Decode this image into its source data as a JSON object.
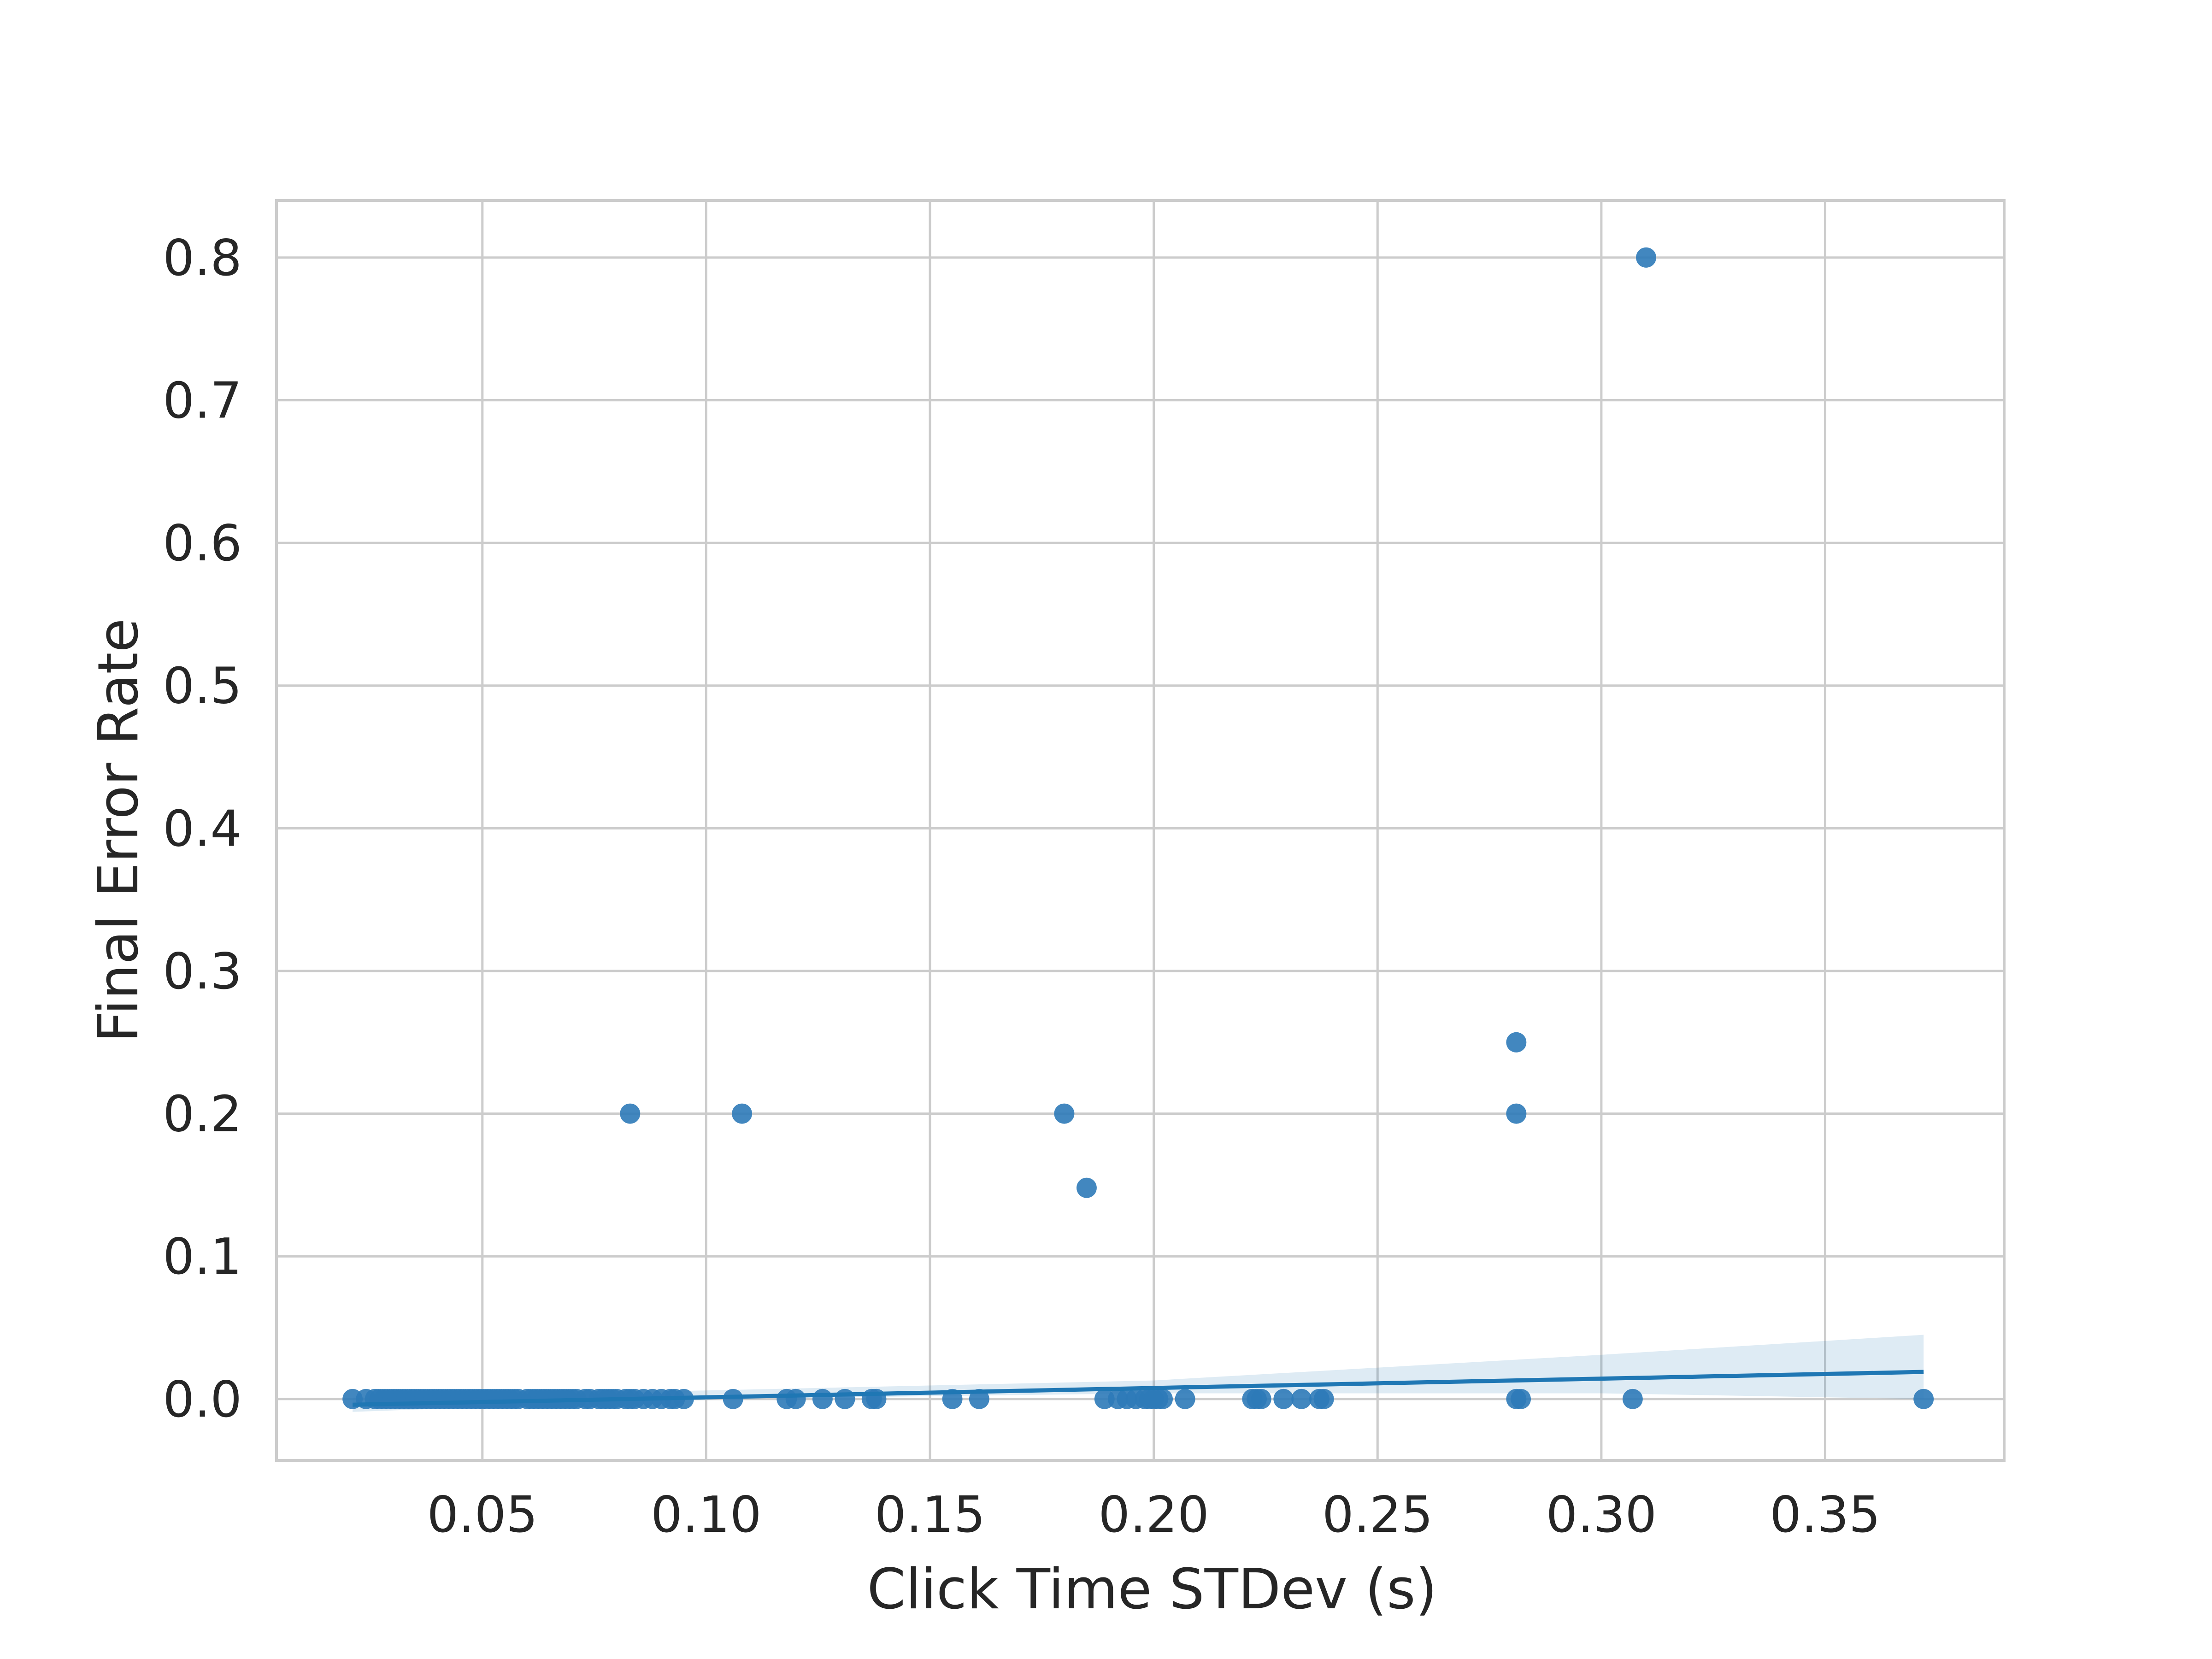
{
  "chart_data": {
    "type": "scatter",
    "title": "",
    "xlabel": "Click Time STDev (s)",
    "ylabel": "Final Error Rate",
    "xlim": [
      0.004,
      0.39
    ],
    "ylim": [
      -0.043,
      0.84
    ],
    "xticks": [
      0.05,
      0.1,
      0.15,
      0.2,
      0.25,
      0.3,
      0.35
    ],
    "xtick_labels": [
      "0.05",
      "0.10",
      "0.15",
      "0.20",
      "0.25",
      "0.30",
      "0.35"
    ],
    "yticks": [
      0.0,
      0.1,
      0.2,
      0.3,
      0.4,
      0.5,
      0.6,
      0.7,
      0.8
    ],
    "ytick_labels": [
      "0.0",
      "0.1",
      "0.2",
      "0.3",
      "0.4",
      "0.5",
      "0.6",
      "0.7",
      "0.8"
    ],
    "grid": true,
    "legend": "none",
    "color": "#1f77b4",
    "points": [
      {
        "x": 0.021,
        "y": 0.0
      },
      {
        "x": 0.024,
        "y": 0.0
      },
      {
        "x": 0.026,
        "y": 0.0
      },
      {
        "x": 0.027,
        "y": 0.0
      },
      {
        "x": 0.028,
        "y": 0.0
      },
      {
        "x": 0.029,
        "y": 0.0
      },
      {
        "x": 0.03,
        "y": 0.0
      },
      {
        "x": 0.031,
        "y": 0.0
      },
      {
        "x": 0.032,
        "y": 0.0
      },
      {
        "x": 0.033,
        "y": 0.0
      },
      {
        "x": 0.034,
        "y": 0.0
      },
      {
        "x": 0.035,
        "y": 0.0
      },
      {
        "x": 0.036,
        "y": 0.0
      },
      {
        "x": 0.037,
        "y": 0.0
      },
      {
        "x": 0.038,
        "y": 0.0
      },
      {
        "x": 0.039,
        "y": 0.0
      },
      {
        "x": 0.04,
        "y": 0.0
      },
      {
        "x": 0.041,
        "y": 0.0
      },
      {
        "x": 0.042,
        "y": 0.0
      },
      {
        "x": 0.043,
        "y": 0.0
      },
      {
        "x": 0.044,
        "y": 0.0
      },
      {
        "x": 0.045,
        "y": 0.0
      },
      {
        "x": 0.046,
        "y": 0.0
      },
      {
        "x": 0.047,
        "y": 0.0
      },
      {
        "x": 0.048,
        "y": 0.0
      },
      {
        "x": 0.049,
        "y": 0.0
      },
      {
        "x": 0.05,
        "y": 0.0
      },
      {
        "x": 0.051,
        "y": 0.0
      },
      {
        "x": 0.052,
        "y": 0.0
      },
      {
        "x": 0.053,
        "y": 0.0
      },
      {
        "x": 0.054,
        "y": 0.0
      },
      {
        "x": 0.055,
        "y": 0.0
      },
      {
        "x": 0.056,
        "y": 0.0
      },
      {
        "x": 0.057,
        "y": 0.0
      },
      {
        "x": 0.058,
        "y": 0.0
      },
      {
        "x": 0.06,
        "y": 0.0
      },
      {
        "x": 0.061,
        "y": 0.0
      },
      {
        "x": 0.062,
        "y": 0.0
      },
      {
        "x": 0.063,
        "y": 0.0
      },
      {
        "x": 0.064,
        "y": 0.0
      },
      {
        "x": 0.065,
        "y": 0.0
      },
      {
        "x": 0.066,
        "y": 0.0
      },
      {
        "x": 0.067,
        "y": 0.0
      },
      {
        "x": 0.068,
        "y": 0.0
      },
      {
        "x": 0.069,
        "y": 0.0
      },
      {
        "x": 0.07,
        "y": 0.0
      },
      {
        "x": 0.071,
        "y": 0.0
      },
      {
        "x": 0.073,
        "y": 0.0
      },
      {
        "x": 0.074,
        "y": 0.0
      },
      {
        "x": 0.076,
        "y": 0.0
      },
      {
        "x": 0.077,
        "y": 0.0
      },
      {
        "x": 0.078,
        "y": 0.0
      },
      {
        "x": 0.079,
        "y": 0.0
      },
      {
        "x": 0.08,
        "y": 0.0
      },
      {
        "x": 0.082,
        "y": 0.0
      },
      {
        "x": 0.083,
        "y": 0.0
      },
      {
        "x": 0.084,
        "y": 0.0
      },
      {
        "x": 0.086,
        "y": 0.0
      },
      {
        "x": 0.088,
        "y": 0.0
      },
      {
        "x": 0.09,
        "y": 0.0
      },
      {
        "x": 0.092,
        "y": 0.0
      },
      {
        "x": 0.093,
        "y": 0.0
      },
      {
        "x": 0.095,
        "y": 0.0
      },
      {
        "x": 0.106,
        "y": 0.0
      },
      {
        "x": 0.118,
        "y": 0.0
      },
      {
        "x": 0.12,
        "y": 0.0
      },
      {
        "x": 0.126,
        "y": 0.0
      },
      {
        "x": 0.131,
        "y": 0.0
      },
      {
        "x": 0.137,
        "y": 0.0
      },
      {
        "x": 0.138,
        "y": 0.0
      },
      {
        "x": 0.155,
        "y": 0.0
      },
      {
        "x": 0.161,
        "y": 0.0
      },
      {
        "x": 0.189,
        "y": 0.0
      },
      {
        "x": 0.192,
        "y": 0.0
      },
      {
        "x": 0.194,
        "y": 0.0
      },
      {
        "x": 0.196,
        "y": 0.0
      },
      {
        "x": 0.198,
        "y": 0.0
      },
      {
        "x": 0.199,
        "y": 0.0
      },
      {
        "x": 0.2,
        "y": 0.0
      },
      {
        "x": 0.201,
        "y": 0.0
      },
      {
        "x": 0.202,
        "y": 0.0
      },
      {
        "x": 0.207,
        "y": 0.0
      },
      {
        "x": 0.222,
        "y": 0.0
      },
      {
        "x": 0.223,
        "y": 0.0
      },
      {
        "x": 0.224,
        "y": 0.0
      },
      {
        "x": 0.229,
        "y": 0.0
      },
      {
        "x": 0.233,
        "y": 0.0
      },
      {
        "x": 0.237,
        "y": 0.0
      },
      {
        "x": 0.238,
        "y": 0.0
      },
      {
        "x": 0.281,
        "y": 0.0
      },
      {
        "x": 0.282,
        "y": 0.0
      },
      {
        "x": 0.307,
        "y": 0.0
      },
      {
        "x": 0.372,
        "y": 0.0
      },
      {
        "x": 0.083,
        "y": 0.2
      },
      {
        "x": 0.108,
        "y": 0.2
      },
      {
        "x": 0.18,
        "y": 0.2
      },
      {
        "x": 0.185,
        "y": 0.148
      },
      {
        "x": 0.281,
        "y": 0.25
      },
      {
        "x": 0.281,
        "y": 0.2
      },
      {
        "x": 0.31,
        "y": 0.8
      }
    ],
    "regression": {
      "x": [
        0.021,
        0.372
      ],
      "y": [
        -0.004,
        0.019
      ]
    },
    "confidence_band": {
      "x": [
        0.021,
        0.1,
        0.2,
        0.3,
        0.372
      ],
      "upper": [
        0.001,
        0.006,
        0.013,
        0.031,
        0.045
      ],
      "lower": [
        -0.009,
        0.0,
        0.004,
        0.004,
        0.0
      ]
    }
  }
}
